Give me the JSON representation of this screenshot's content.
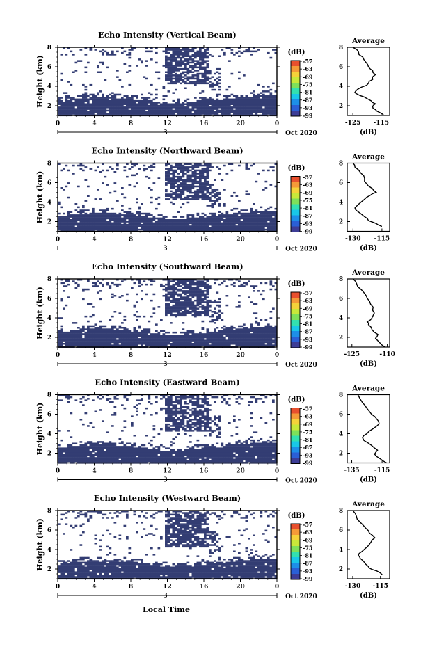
{
  "colors": {
    "echo_fill": "#333d73",
    "colorbar": [
      "#3c3c96",
      "#2a5fd6",
      "#1d8fe8",
      "#19c7e8",
      "#33e0b0",
      "#7ee05a",
      "#c8e83a",
      "#f5d23a",
      "#f59a38",
      "#e8502e"
    ]
  },
  "figure": {
    "xaxis_label": "Local Time"
  },
  "chart_data": [
    {
      "type": "heatmap",
      "title": "Echo Intensity (Vertical Beam)",
      "ylabel": "Height (km)",
      "ylim": [
        1,
        8
      ],
      "yticks": [
        "2",
        "4",
        "6",
        "8"
      ],
      "xlim": [
        0,
        24
      ],
      "xticks": [
        "0",
        "4",
        "8",
        "12",
        "16",
        "20",
        "0"
      ],
      "date_label": "3",
      "date_suffix": "Oct 2020",
      "colorbar": {
        "unit": "(dB)",
        "labels": [
          "-57",
          "-63",
          "-69",
          "-75",
          "-81",
          "-87",
          "-93",
          "-99"
        ]
      },
      "average": {
        "title": "Average",
        "xlabel": "(dB)",
        "xticks": [
          "-125",
          "-115"
        ],
        "xlim": [
          -127,
          -112
        ],
        "yticks": [
          "2",
          "4",
          "6",
          "8"
        ],
        "profile": [
          [
            -114,
            1.0
          ],
          [
            -115.5,
            1.3
          ],
          [
            -117,
            1.6
          ],
          [
            -118,
            1.9
          ],
          [
            -117,
            2.2
          ],
          [
            -118.5,
            2.5
          ],
          [
            -121,
            2.9
          ],
          [
            -123.5,
            3.2
          ],
          [
            -124,
            3.5
          ],
          [
            -122,
            3.9
          ],
          [
            -119.5,
            4.3
          ],
          [
            -118,
            4.7
          ],
          [
            -117,
            5.2
          ],
          [
            -118,
            5.6
          ],
          [
            -119.5,
            6.0
          ],
          [
            -120.5,
            6.5
          ],
          [
            -121.5,
            7.0
          ],
          [
            -123,
            7.5
          ],
          [
            -125,
            8.0
          ]
        ]
      }
    },
    {
      "type": "heatmap",
      "title": "Echo Intensity (Northward Beam)",
      "ylabel": "Height (km)",
      "ylim": [
        1,
        8
      ],
      "yticks": [
        "2",
        "4",
        "6",
        "8"
      ],
      "xlim": [
        0,
        24
      ],
      "xticks": [
        "0",
        "4",
        "8",
        "12",
        "16",
        "20",
        "0"
      ],
      "date_label": "3",
      "date_suffix": "Oct 2020",
      "colorbar": {
        "unit": "(dB)",
        "labels": [
          "-57",
          "-63",
          "-69",
          "-75",
          "-81",
          "-87",
          "-93",
          "-99"
        ]
      },
      "average": {
        "title": "Average",
        "xlabel": "(dB)",
        "xticks": [
          "-130",
          "-115"
        ],
        "xlim": [
          -133,
          -111
        ],
        "yticks": [
          "2",
          "4",
          "6",
          "8"
        ],
        "profile": [
          [
            -115,
            1.5
          ],
          [
            -118,
            1.8
          ],
          [
            -122,
            2.1
          ],
          [
            -124,
            2.5
          ],
          [
            -128,
            3.1
          ],
          [
            -129,
            3.4
          ],
          [
            -127,
            3.8
          ],
          [
            -124,
            4.3
          ],
          [
            -121,
            4.7
          ],
          [
            -118,
            5.0
          ],
          [
            -120,
            5.4
          ],
          [
            -123,
            5.9
          ],
          [
            -124,
            6.4
          ],
          [
            -126,
            7.0
          ],
          [
            -129,
            7.6
          ],
          [
            -130,
            8.0
          ]
        ]
      }
    },
    {
      "type": "heatmap",
      "title": "Echo Intensity (Southward Beam)",
      "ylabel": "Height (km)",
      "ylim": [
        1,
        8
      ],
      "yticks": [
        "2",
        "4",
        "6",
        "8"
      ],
      "xlim": [
        0,
        24
      ],
      "xticks": [
        "0",
        "4",
        "8",
        "12",
        "16",
        "20",
        "0"
      ],
      "date_label": "3",
      "date_suffix": "Oct 2020",
      "colorbar": {
        "unit": "(dB)",
        "labels": [
          "-57",
          "-63",
          "-69",
          "-75",
          "-81",
          "-87",
          "-93",
          "-99"
        ]
      },
      "average": {
        "title": "Average",
        "xlabel": "(dB)",
        "xticks": [
          "-125",
          "-110"
        ],
        "xlim": [
          -127,
          -109
        ],
        "yticks": [
          "2",
          "4",
          "6",
          "8"
        ],
        "profile": [
          [
            -111,
            1.0
          ],
          [
            -113,
            1.4
          ],
          [
            -115,
            1.9
          ],
          [
            -114,
            2.3
          ],
          [
            -116.5,
            2.8
          ],
          [
            -118,
            3.3
          ],
          [
            -118.5,
            3.6
          ],
          [
            -116.5,
            4.0
          ],
          [
            -115.5,
            4.5
          ],
          [
            -116,
            5.1
          ],
          [
            -117.5,
            5.7
          ],
          [
            -119,
            6.3
          ],
          [
            -121,
            6.9
          ],
          [
            -123,
            7.5
          ],
          [
            -124.5,
            8.0
          ]
        ]
      }
    },
    {
      "type": "heatmap",
      "title": "Echo Intensity (Eastward Beam)",
      "ylabel": "Height (km)",
      "ylim": [
        1,
        8
      ],
      "yticks": [
        "2",
        "4",
        "6",
        "8"
      ],
      "xlim": [
        0,
        24
      ],
      "xticks": [
        "0",
        "4",
        "8",
        "12",
        "16",
        "20",
        "0"
      ],
      "date_label": "3",
      "date_suffix": "Oct 2020",
      "colorbar": {
        "unit": "(dB)",
        "labels": [
          "-57",
          "-63",
          "-69",
          "-75",
          "-81",
          "-87",
          "-93",
          "-99"
        ]
      },
      "average": {
        "title": "Average",
        "xlabel": "(dB)",
        "xticks": [
          "-135",
          "-115"
        ],
        "xlim": [
          -138,
          -110
        ],
        "yticks": [
          "2",
          "4",
          "6",
          "8"
        ],
        "profile": [
          [
            -112,
            1.0
          ],
          [
            -116,
            1.4
          ],
          [
            -120,
            1.9
          ],
          [
            -118,
            2.3
          ],
          [
            -122,
            2.8
          ],
          [
            -127,
            3.3
          ],
          [
            -128,
            3.6
          ],
          [
            -125,
            4.0
          ],
          [
            -121,
            4.5
          ],
          [
            -117,
            5.0
          ],
          [
            -118.5,
            5.5
          ],
          [
            -122,
            6.0
          ],
          [
            -125,
            6.6
          ],
          [
            -128,
            7.2
          ],
          [
            -131,
            8.0
          ]
        ]
      }
    },
    {
      "type": "heatmap",
      "title": "Echo Intensity (Westward Beam)",
      "ylabel": "Height (km)",
      "ylim": [
        1,
        8
      ],
      "yticks": [
        "2",
        "4",
        "6",
        "8"
      ],
      "xlim": [
        0,
        24
      ],
      "xticks": [
        "0",
        "4",
        "8",
        "12",
        "16",
        "20",
        "0"
      ],
      "date_label": "3",
      "date_suffix": "Oct 2020",
      "colorbar": {
        "unit": "(dB)",
        "labels": [
          "-57",
          "-63",
          "-69",
          "-75",
          "-81",
          "-87",
          "-93",
          "-99"
        ]
      },
      "average": {
        "title": "Average",
        "xlabel": "(dB)",
        "xticks": [
          "-130",
          "-115"
        ],
        "xlim": [
          -133,
          -110
        ],
        "yticks": [
          "2",
          "4",
          "6",
          "8"
        ],
        "profile": [
          [
            -114,
            1.4
          ],
          [
            -117,
            1.8
          ],
          [
            -121,
            2.1
          ],
          [
            -123,
            2.5
          ],
          [
            -126,
            3.1
          ],
          [
            -127,
            3.4
          ],
          [
            -125,
            3.8
          ],
          [
            -122,
            4.3
          ],
          [
            -120,
            4.8
          ],
          [
            -118,
            5.2
          ],
          [
            -121,
            5.7
          ],
          [
            -123,
            6.2
          ],
          [
            -126,
            6.8
          ],
          [
            -128,
            7.4
          ],
          [
            -130,
            8.0
          ]
        ]
      }
    }
  ]
}
